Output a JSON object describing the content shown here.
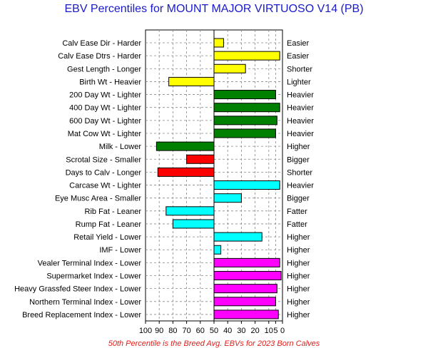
{
  "title": "EBV Percentiles for MOUNT MAJOR VIRTUOSO V14 (PB)",
  "footer": "50th Percentile is the Breed Avg. EBVs for 2023 Born Calves",
  "colors": {
    "yellow": "#ffff00",
    "green": "#008000",
    "red": "#ff0000",
    "cyan": "#00ffff",
    "magenta": "#ff00ff",
    "title": "#1a1acc",
    "footer": "#e0201a",
    "grid": "#888888"
  },
  "chart_data": {
    "type": "bar",
    "orientation": "horizontal",
    "title": "EBV Percentiles for MOUNT MAJOR VIRTUOSO V14 (PB)",
    "xlim": [
      100,
      0
    ],
    "x_reversed": true,
    "baseline": 50,
    "x_ticks": [
      "100",
      "90",
      "80",
      "70",
      "60",
      "50",
      "40",
      "30",
      "20",
      "10",
      "5",
      "0"
    ],
    "x_tick_values": [
      100,
      90,
      80,
      70,
      60,
      50,
      40,
      30,
      20,
      10,
      5,
      0
    ],
    "grid": true,
    "rows": [
      {
        "left": "Calv Ease Dir - Harder",
        "right": "Easier",
        "value": 43,
        "color": "yellow"
      },
      {
        "left": "Calv Ease Dtrs - Harder",
        "right": "Easier",
        "value": 2,
        "color": "yellow"
      },
      {
        "left": "Gest Length - Longer",
        "right": "Shorter",
        "value": 27,
        "color": "yellow"
      },
      {
        "left": "Birth Wt - Heavier",
        "right": "Lighter",
        "value": 83,
        "color": "yellow"
      },
      {
        "left": "200 Day Wt - Lighter",
        "right": "Heavier",
        "value": 5,
        "color": "green"
      },
      {
        "left": "400 Day Wt - Lighter",
        "right": "Heavier",
        "value": 2,
        "color": "green"
      },
      {
        "left": "600 Day Wt - Lighter",
        "right": "Heavier",
        "value": 4,
        "color": "green"
      },
      {
        "left": "Mat Cow Wt - Lighter",
        "right": "Heavier",
        "value": 5,
        "color": "green"
      },
      {
        "left": "Milk - Lower",
        "right": "Higher",
        "value": 92,
        "color": "green"
      },
      {
        "left": "Scrotal Size - Smaller",
        "right": "Bigger",
        "value": 70,
        "color": "red"
      },
      {
        "left": "Days to Calv - Longer",
        "right": "Shorter",
        "value": 91,
        "color": "red"
      },
      {
        "left": "Carcase Wt - Lighter",
        "right": "Heavier",
        "value": 2,
        "color": "cyan"
      },
      {
        "left": "Eye Musc Area - Smaller",
        "right": "Bigger",
        "value": 30,
        "color": "cyan"
      },
      {
        "left": "Rib Fat - Leaner",
        "right": "Fatter",
        "value": 85,
        "color": "cyan"
      },
      {
        "left": "Rump Fat - Leaner",
        "right": "Fatter",
        "value": 80,
        "color": "cyan"
      },
      {
        "left": "Retail Yield - Lower",
        "right": "Higher",
        "value": 15,
        "color": "cyan"
      },
      {
        "left": "IMF - Lower",
        "right": "Higher",
        "value": 45,
        "color": "cyan"
      },
      {
        "left": "Vealer Terminal Index - Lower",
        "right": "Higher",
        "value": 2,
        "color": "magenta"
      },
      {
        "left": "Supermarket Index - Lower",
        "right": "Higher",
        "value": 1,
        "color": "magenta"
      },
      {
        "left": "Heavy Grassfed Steer Index - Lower",
        "right": "Higher",
        "value": 4,
        "color": "magenta"
      },
      {
        "left": "Northern Terminal Index - Lower",
        "right": "Higher",
        "value": 5,
        "color": "magenta"
      },
      {
        "left": "Breed Replacement Index - Lower",
        "right": "Higher",
        "value": 3,
        "color": "magenta"
      }
    ]
  }
}
